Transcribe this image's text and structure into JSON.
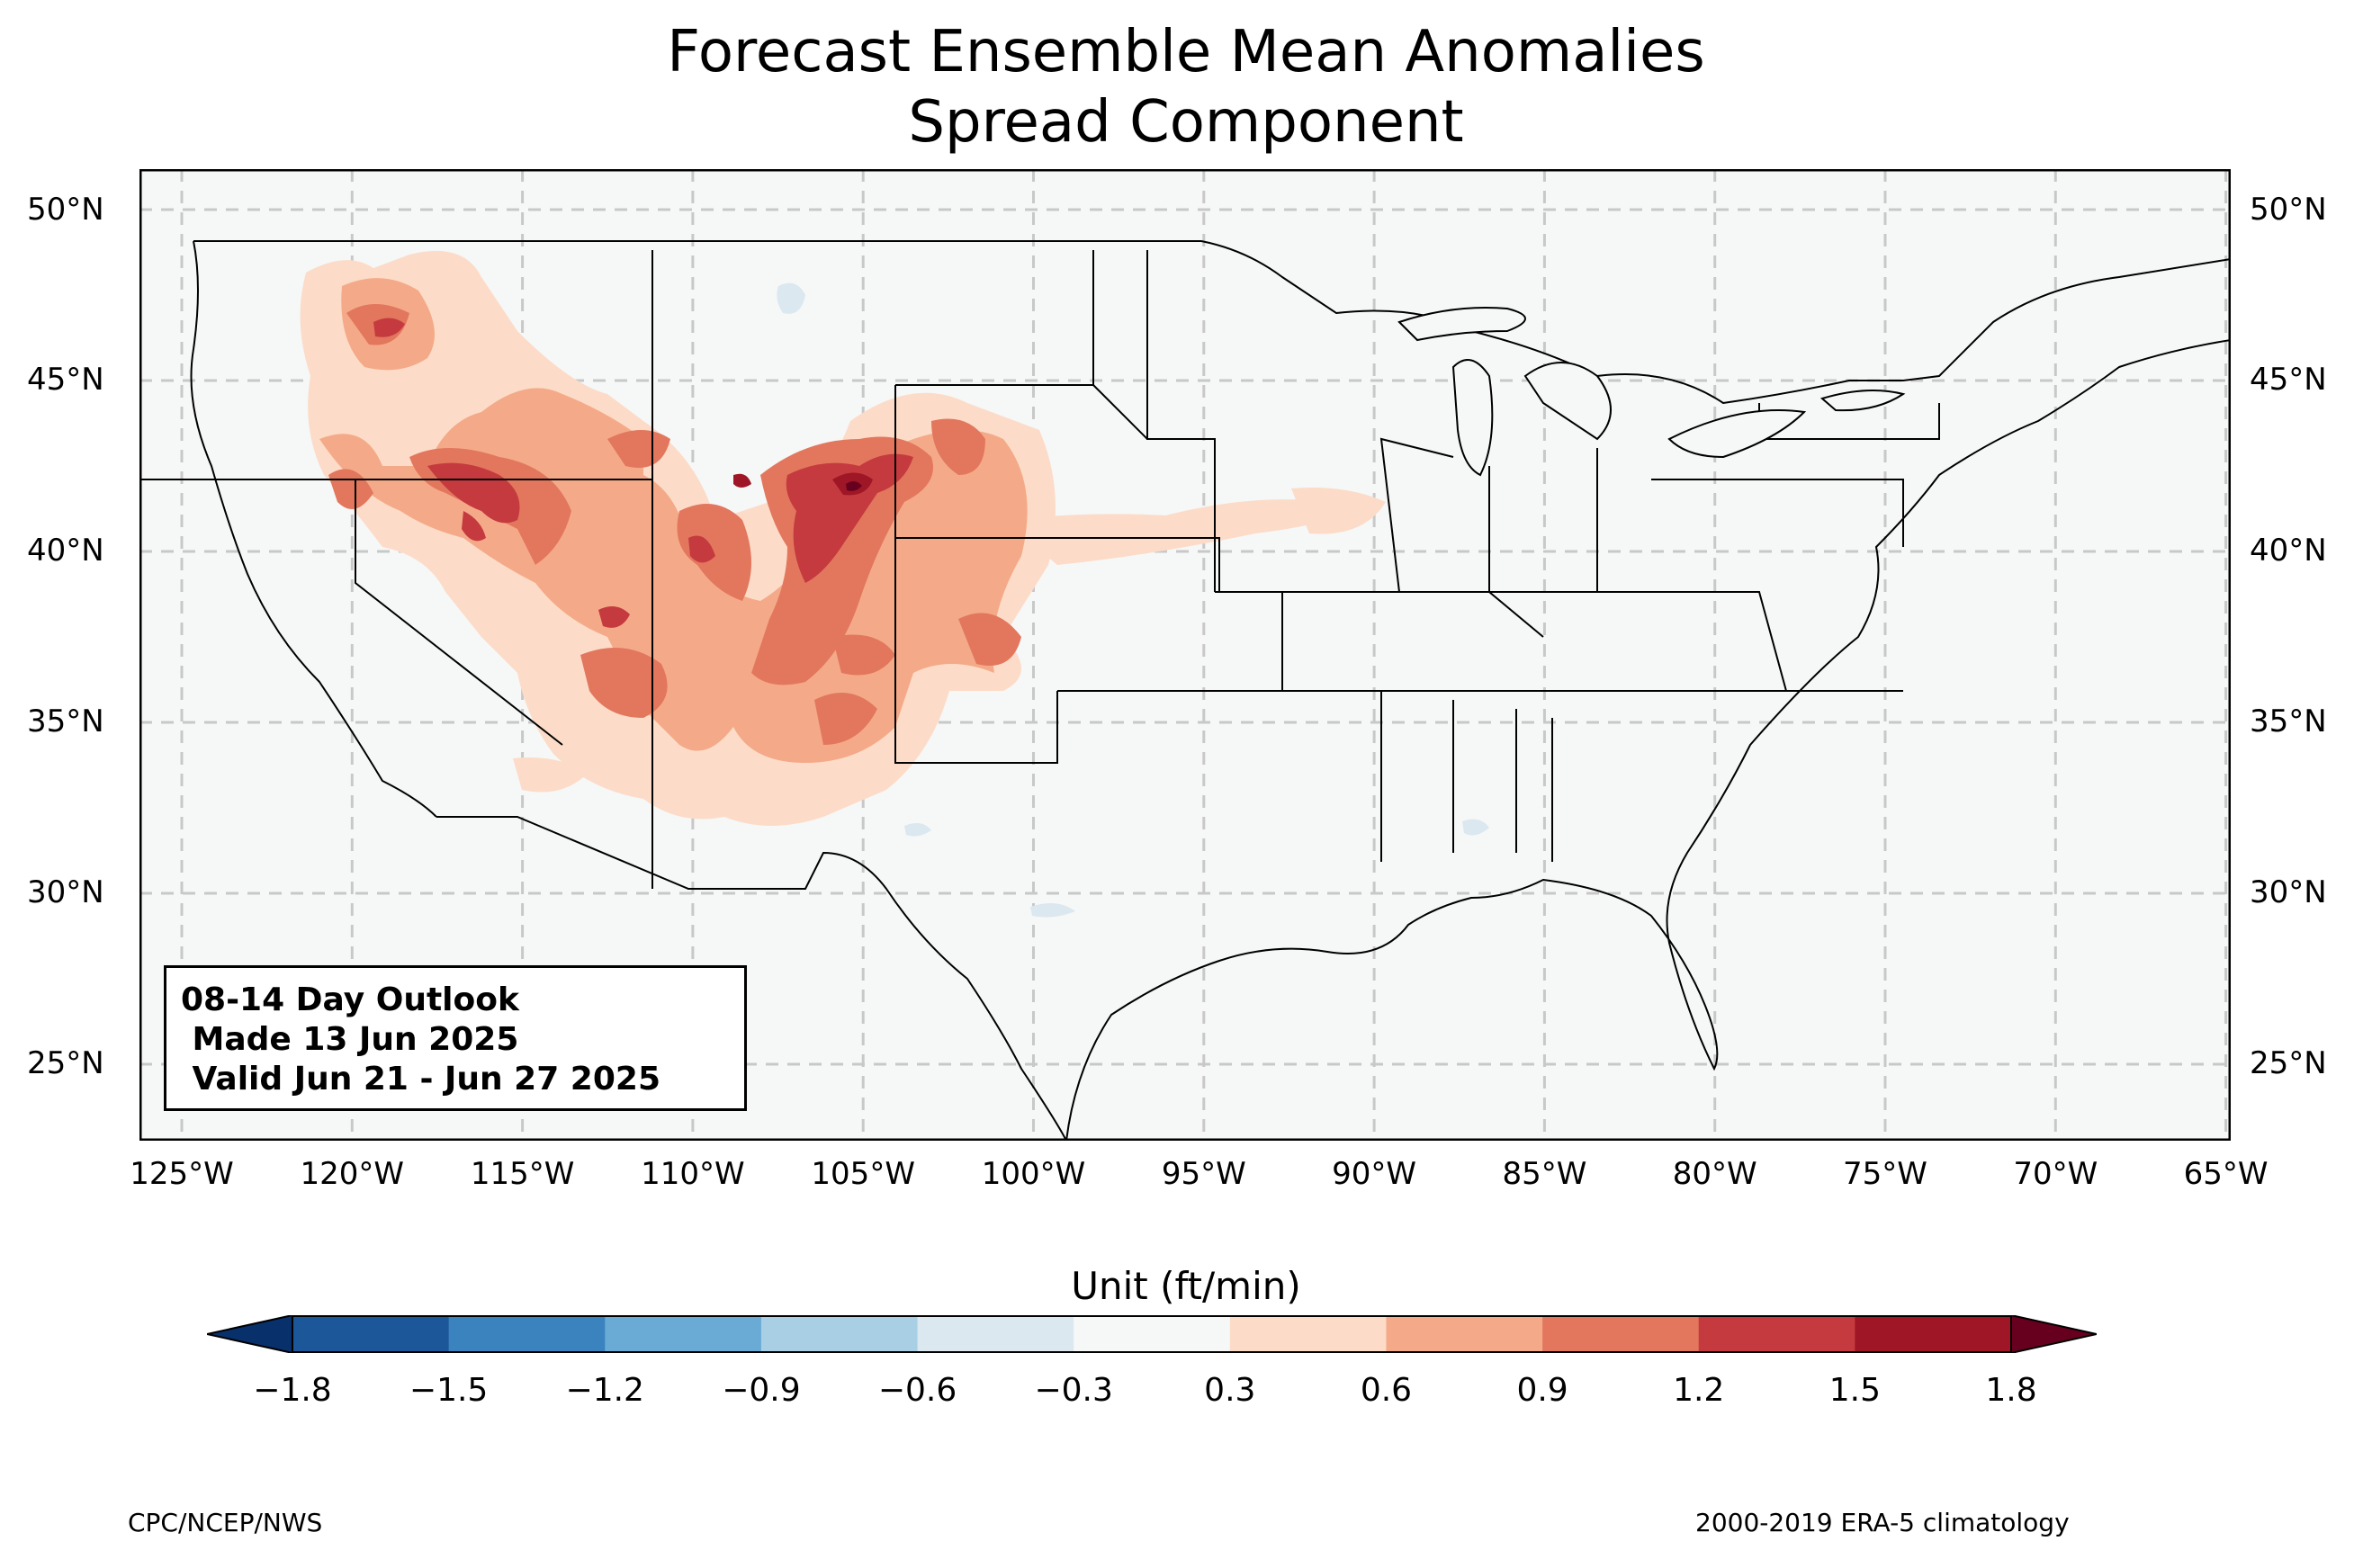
{
  "title": [
    "Forecast Ensemble Mean Anomalies",
    "Spread Component"
  ],
  "outlook_box": [
    "08-14 Day Outlook",
    " Made 13 Jun 2025",
    " Valid Jun 21 - Jun 27 2025"
  ],
  "colorbar": {
    "label": "Unit (ft/min)",
    "ticks": [
      "−1.8",
      "−1.5",
      "−1.2",
      "−0.9",
      "−0.6",
      "−0.3",
      "0.3",
      "0.6",
      "0.9",
      "1.2",
      "1.5",
      "1.8"
    ],
    "colors": [
      "#08306b",
      "#1b5799",
      "#3a83bf",
      "#6aabd6",
      "#a9cfe4",
      "#dbe8f0",
      "#f6f7f7",
      "#fcdcc8",
      "#f4aa88",
      "#e2775e",
      "#c53a3e",
      "#9f1626",
      "#67001f"
    ]
  },
  "map": {
    "lat_labels": [
      "50°N",
      "45°N",
      "40°N",
      "35°N",
      "30°N",
      "25°N"
    ],
    "lon_labels": [
      "125°W",
      "120°W",
      "115°W",
      "110°W",
      "105°W",
      "100°W",
      "95°W",
      "90°W",
      "85°W",
      "80°W",
      "75°W",
      "70°W",
      "65°W"
    ],
    "background_color": "#f6f7f7"
  },
  "footer": {
    "left": "CPC/NCEP/NWS",
    "right": "2000-2019 ERA-5 climatology"
  }
}
